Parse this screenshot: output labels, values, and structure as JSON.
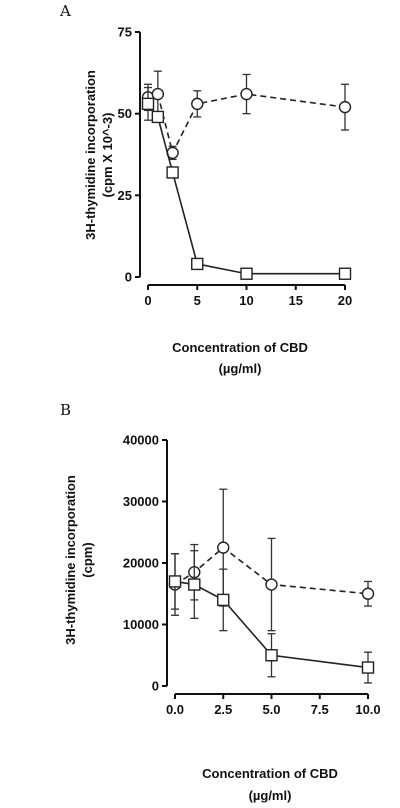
{
  "chart_data": [
    {
      "panel": "A",
      "type": "line",
      "title": "",
      "xlabel": "Concentration of CBD",
      "xlabel_unit": "(µg/ml)",
      "ylabel": "3H-thymidine incorporation",
      "ylabel_unit": "(cpm X 10^-3)",
      "xlim": [
        0,
        20
      ],
      "ylim": [
        0,
        75
      ],
      "x_ticks": [
        "0",
        "5",
        "10",
        "15",
        "20"
      ],
      "y_ticks": [
        "0",
        "25",
        "50",
        "75"
      ],
      "grid": false,
      "series": [
        {
          "marker": "circle",
          "line_style": "dashed",
          "x": [
            0,
            1,
            2.5,
            5,
            10,
            20
          ],
          "y": [
            55,
            56,
            38,
            53,
            56,
            52
          ],
          "error": [
            4,
            7,
            2,
            4,
            6,
            7
          ]
        },
        {
          "marker": "square",
          "line_style": "solid",
          "x": [
            0,
            1,
            2.5,
            5,
            10,
            20
          ],
          "y": [
            53,
            49,
            32,
            4,
            1,
            1
          ],
          "error": [
            5,
            1.5,
            1,
            1,
            0.5,
            0.5
          ]
        }
      ]
    },
    {
      "panel": "B",
      "type": "line",
      "title": "",
      "xlabel": "Concentration of CBD",
      "xlabel_unit": "(µg/ml)",
      "ylabel": "3H-thymidine incorporation",
      "ylabel_unit": "(cpm)",
      "xlim": [
        0,
        10
      ],
      "ylim": [
        0,
        40000
      ],
      "x_ticks": [
        "0.0",
        "2.5",
        "5.0",
        "7.5",
        "10.0"
      ],
      "y_ticks": [
        "0",
        "10000",
        "20000",
        "30000",
        "40000"
      ],
      "grid": false,
      "series": [
        {
          "marker": "circle",
          "line_style": "dashed",
          "x": [
            0,
            1,
            2.5,
            5,
            10
          ],
          "y": [
            16500,
            18500,
            22500,
            16500,
            15000
          ],
          "error": [
            5000,
            4500,
            9500,
            7500,
            2000
          ]
        },
        {
          "marker": "square",
          "line_style": "solid",
          "x": [
            0,
            1,
            2.5,
            5,
            10
          ],
          "y": [
            17000,
            16500,
            14000,
            5000,
            3000
          ],
          "error": [
            4500,
            5500,
            5000,
            3500,
            2500
          ]
        }
      ]
    }
  ]
}
